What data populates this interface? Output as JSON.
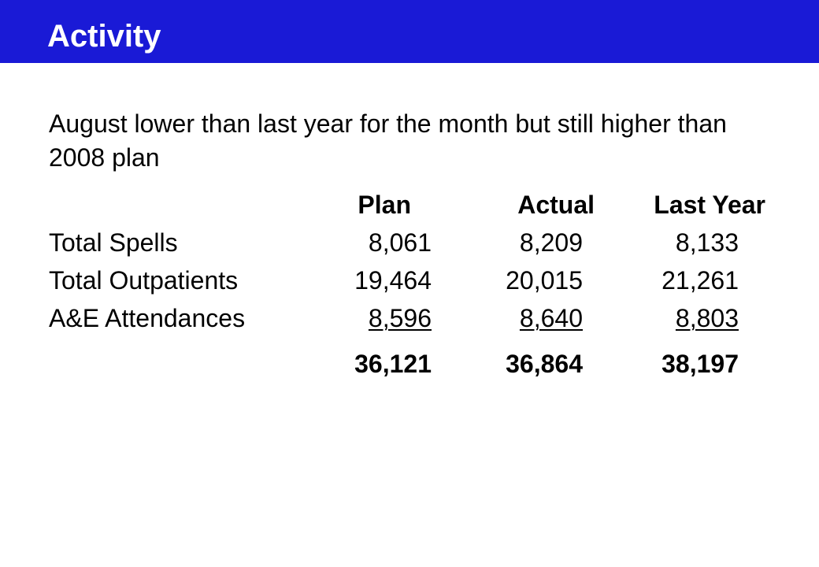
{
  "slide": {
    "title": "Activity",
    "subtitle": "August lower than last year for the month but still higher than 2008 plan",
    "colors": {
      "title_bar": "#1a1ad6",
      "title_text": "#ffffff"
    }
  },
  "table": {
    "headers": {
      "plan": "Plan",
      "actual": "Actual",
      "last_year": "Last Year"
    },
    "rows": [
      {
        "label": "Total Spells",
        "plan": "8,061",
        "actual": "8,209",
        "last_year": "8,133"
      },
      {
        "label": "Total Outpatients",
        "plan": "19,464",
        "actual": "20,015",
        "last_year": "21,261"
      },
      {
        "label": "A&E Attendances",
        "plan": "8,596",
        "actual": "8,640",
        "last_year": "8,803"
      }
    ],
    "totals": {
      "plan": "36,121",
      "actual": "36,864",
      "last_year": "38,197"
    }
  }
}
